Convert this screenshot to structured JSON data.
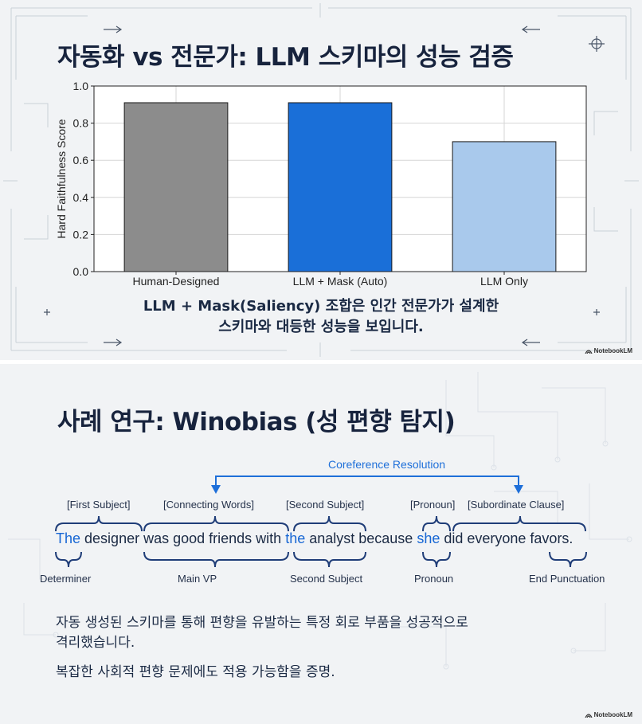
{
  "slide1": {
    "title": "자동화 vs 전문가: LLM 스키마의 성능 검증",
    "caption_line1": "LLM + Mask(Saliency) 조합은 인간 전문가가 설계한",
    "caption_line2": "스키마와 대등한 성능을 보입니다.",
    "brand": "NotebookLM"
  },
  "chart_data": {
    "type": "bar",
    "categories": [
      "Human-Designed",
      "LLM + Mask (Auto)",
      "LLM Only"
    ],
    "values": [
      0.91,
      0.91,
      0.7
    ],
    "colors": [
      "#8c8c8c",
      "#1a6fd8",
      "#a9c9ec"
    ],
    "ylabel": "Hard Faithfulness Score",
    "ylim": [
      0,
      1.0
    ],
    "yticks": [
      "0.0",
      "0.2",
      "0.4",
      "0.6",
      "0.8",
      "1.0"
    ],
    "grid": true
  },
  "slide2": {
    "title": "사례 연구: Winobias (성 편향 탐지)",
    "coreference_label": "Coreference Resolution",
    "sentence": {
      "w1": "The",
      "w2": " designer ",
      "w3": "was good friends with ",
      "w4": "the",
      "w5": " analyst because ",
      "w6": "she",
      "w7": " did everyone favors."
    },
    "top_labels": {
      "first_subject": "[First Subject]",
      "connecting_words": "[Connecting Words]",
      "second_subject": "[Second Subject]",
      "pronoun": "[Pronoun]",
      "subordinate_clause": "[Subordinate Clause]"
    },
    "bottom_labels": {
      "determiner": "Determiner",
      "main_vp": "Main VP",
      "second_subject": "Second Subject",
      "pronoun": "Pronoun",
      "end_punctuation": "End Punctuation"
    },
    "body_line1": "자동 생성된 스키마를 통해 편향을 유발하는 특정 회로 부품을 성공적으로",
    "body_line2": "격리했습니다.",
    "body_line3": "복잡한 사회적 편향 문제에도 적용 가능함을 증명.",
    "brand": "NotebookLM"
  }
}
